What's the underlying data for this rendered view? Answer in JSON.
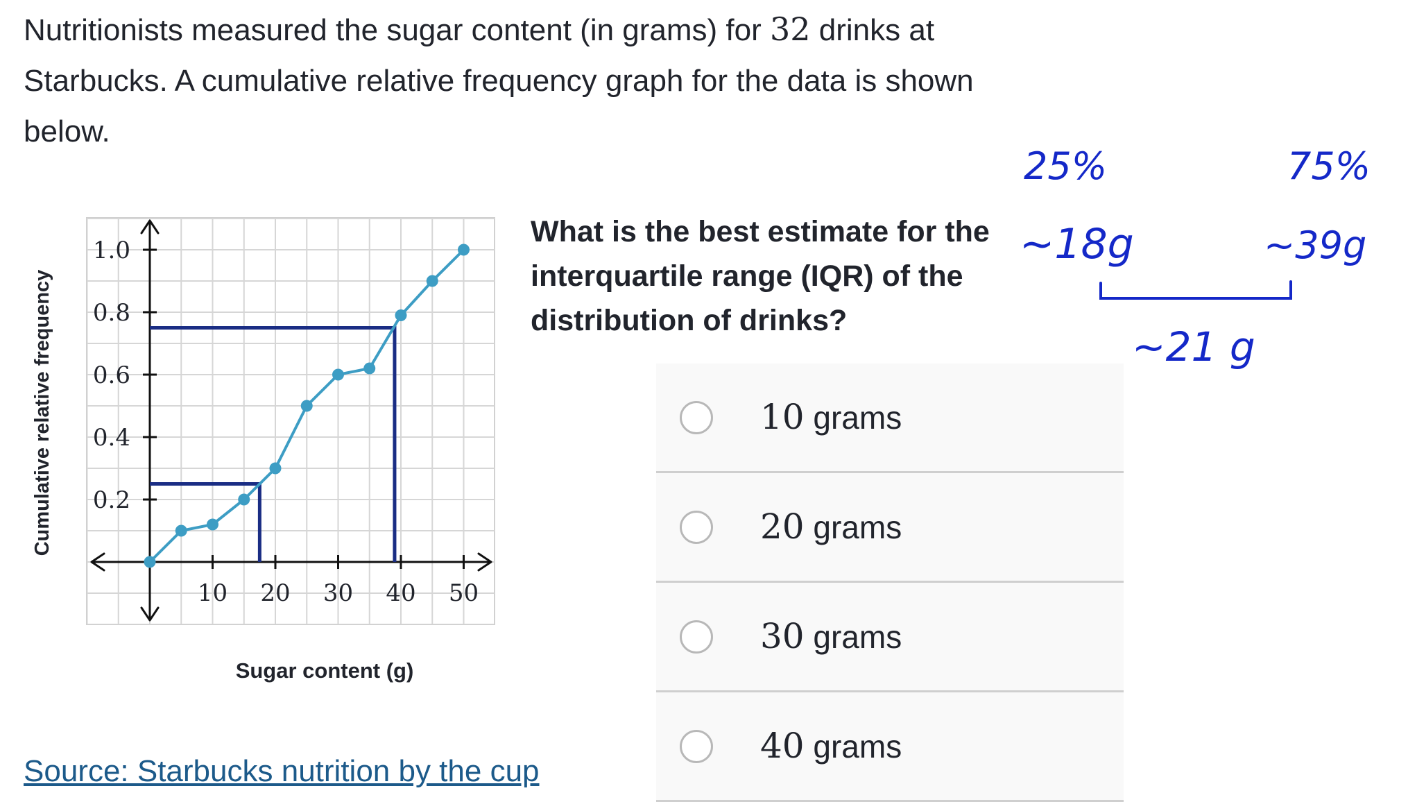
{
  "intro": {
    "part1": "Nutritionists measured the sugar content (in grams) for ",
    "count": "32",
    "part2": " drinks at Starbucks. A cumulative relative frequency graph for the data is shown below."
  },
  "question": "What is the best estimate for the interquartile range (IQR) of the distribution of drinks?",
  "choices": [
    {
      "num": "10",
      "unit": "grams"
    },
    {
      "num": "20",
      "unit": "grams"
    },
    {
      "num": "30",
      "unit": "grams"
    },
    {
      "num": "40",
      "unit": "grams"
    }
  ],
  "source_link": "Source: Starbucks nutrition by the cup",
  "annotations": {
    "q1_pct": "25%",
    "q3_pct": "75%",
    "q1_val": "~18g",
    "q3_val": "~39g",
    "iqr": "~21 g"
  },
  "chart_data": {
    "type": "line",
    "xlabel": "Sugar content (g)",
    "ylabel": "Cumulative relative frequency",
    "xlim": [
      -10,
      55
    ],
    "ylim": [
      -0.2,
      1.1
    ],
    "x_ticks": [
      10,
      20,
      30,
      40,
      50
    ],
    "y_ticks": [
      0.2,
      0.4,
      0.6,
      0.8,
      1.0
    ],
    "y_tick_labels": [
      "0.2",
      "0.4",
      "0.6",
      "0.8",
      "1.0"
    ],
    "grid": true,
    "x": [
      0,
      5,
      10,
      15,
      20,
      25,
      30,
      35,
      40,
      45,
      50
    ],
    "y": [
      0,
      0.1,
      0.12,
      0.2,
      0.3,
      0.5,
      0.6,
      0.62,
      0.79,
      0.9,
      1.0
    ],
    "colors": {
      "line": "#3d9dc4",
      "quartile_lines": "#1a2d84",
      "grid": "#d6d6d6",
      "axis": "#111111"
    },
    "quartile_guides": [
      {
        "y": 0.25,
        "x": 17.5
      },
      {
        "y": 0.75,
        "x": 39
      }
    ]
  },
  "colors": {
    "ink": "#1428c8"
  }
}
